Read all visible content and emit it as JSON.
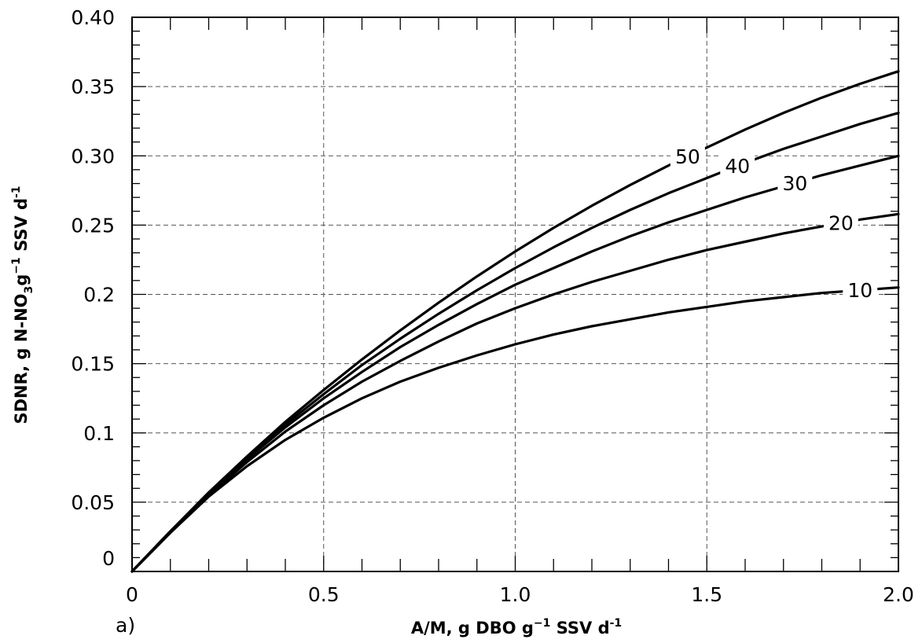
{
  "chart_data": {
    "type": "line",
    "panel_label": "a)",
    "xlabel": {
      "main": "A/M, g DBO g",
      "sup1": "−1",
      "mid": " SSV d",
      "sup2": "-1"
    },
    "ylabel": {
      "main": "SDNR, g N-NO",
      "sub": "3",
      "mid": "g",
      "sup1": "−1",
      "end": " SSV d",
      "sup2": "-1"
    },
    "xlim": [
      0,
      2.0
    ],
    "ylim": [
      0,
      0.4
    ],
    "x_ticks": [
      {
        "value": 0,
        "label": "0"
      },
      {
        "value": 0.5,
        "label": "0.5"
      },
      {
        "value": 1.0,
        "label": "1.0"
      },
      {
        "value": 1.5,
        "label": "1.5"
      },
      {
        "value": 2.0,
        "label": "2.0"
      }
    ],
    "y_ticks": [
      {
        "value": 0,
        "label": "0"
      },
      {
        "value": 0.05,
        "label": "0.05"
      },
      {
        "value": 0.1,
        "label": "0.1"
      },
      {
        "value": 0.15,
        "label": "0.15"
      },
      {
        "value": 0.2,
        "label": "0.2"
      },
      {
        "value": 0.25,
        "label": "0.25"
      },
      {
        "value": 0.3,
        "label": "0.30"
      },
      {
        "value": 0.35,
        "label": "0.35"
      },
      {
        "value": 0.4,
        "label": "0.40"
      }
    ],
    "x_minor_step": 0.1,
    "y_minor_step": 0.01,
    "grid": true,
    "series": [
      {
        "name": "50",
        "x": [
          0,
          0.1,
          0.2,
          0.3,
          0.4,
          0.5,
          0.6,
          0.7,
          0.8,
          0.9,
          1.0,
          1.1,
          1.2,
          1.3,
          1.4,
          1.5,
          1.6,
          1.7,
          1.8,
          1.9,
          2.0
        ],
        "y": [
          0,
          0.029,
          0.057,
          0.083,
          0.108,
          0.131,
          0.153,
          0.174,
          0.194,
          0.213,
          0.231,
          0.248,
          0.264,
          0.279,
          0.293,
          0.306,
          0.319,
          0.331,
          0.342,
          0.352,
          0.361
        ],
        "label_at": 1.45
      },
      {
        "name": "40",
        "x": [
          0,
          0.1,
          0.2,
          0.3,
          0.4,
          0.5,
          0.6,
          0.7,
          0.8,
          0.9,
          1.0,
          1.1,
          1.2,
          1.3,
          1.4,
          1.5,
          1.6,
          1.7,
          1.8,
          1.9,
          2.0
        ],
        "y": [
          0,
          0.029,
          0.056,
          0.082,
          0.106,
          0.128,
          0.149,
          0.168,
          0.186,
          0.203,
          0.219,
          0.234,
          0.248,
          0.261,
          0.273,
          0.284,
          0.295,
          0.305,
          0.314,
          0.323,
          0.331
        ],
        "label_at": 1.58
      },
      {
        "name": "30",
        "x": [
          0,
          0.1,
          0.2,
          0.3,
          0.4,
          0.5,
          0.6,
          0.7,
          0.8,
          0.9,
          1.0,
          1.1,
          1.2,
          1.3,
          1.4,
          1.5,
          1.6,
          1.7,
          1.8,
          1.9,
          2.0
        ],
        "y": [
          0,
          0.029,
          0.056,
          0.081,
          0.104,
          0.125,
          0.144,
          0.162,
          0.178,
          0.193,
          0.207,
          0.219,
          0.231,
          0.242,
          0.252,
          0.261,
          0.27,
          0.278,
          0.286,
          0.293,
          0.3
        ],
        "label_at": 1.73
      },
      {
        "name": "20",
        "x": [
          0,
          0.1,
          0.2,
          0.3,
          0.4,
          0.5,
          0.6,
          0.7,
          0.8,
          0.9,
          1.0,
          1.1,
          1.2,
          1.3,
          1.4,
          1.5,
          1.6,
          1.7,
          1.8,
          1.9,
          2.0
        ],
        "y": [
          0,
          0.028,
          0.055,
          0.079,
          0.101,
          0.12,
          0.137,
          0.152,
          0.166,
          0.179,
          0.19,
          0.2,
          0.209,
          0.217,
          0.225,
          0.232,
          0.238,
          0.244,
          0.249,
          0.254,
          0.258
        ],
        "label_at": 1.85
      },
      {
        "name": "10",
        "x": [
          0,
          0.1,
          0.2,
          0.3,
          0.4,
          0.5,
          0.6,
          0.7,
          0.8,
          0.9,
          1.0,
          1.1,
          1.2,
          1.3,
          1.4,
          1.5,
          1.6,
          1.7,
          1.8,
          1.9,
          2.0
        ],
        "y": [
          0,
          0.028,
          0.054,
          0.076,
          0.095,
          0.111,
          0.125,
          0.137,
          0.147,
          0.156,
          0.164,
          0.171,
          0.177,
          0.182,
          0.187,
          0.191,
          0.195,
          0.198,
          0.201,
          0.203,
          0.205
        ],
        "label_at": 1.9
      }
    ]
  }
}
